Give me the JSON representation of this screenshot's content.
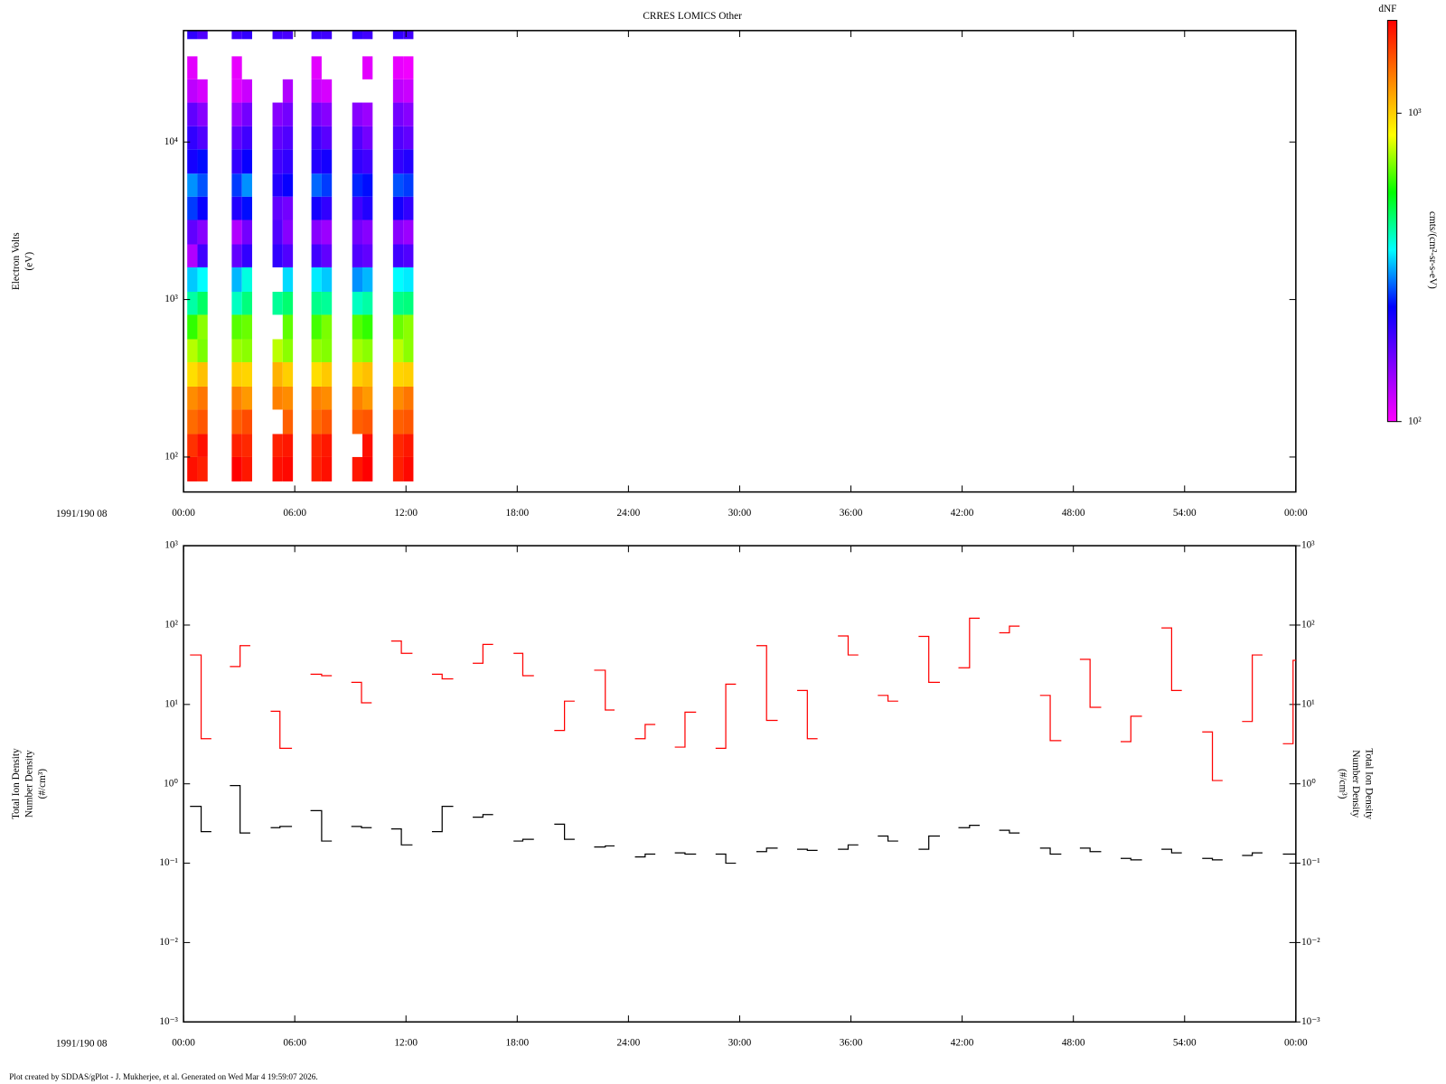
{
  "chart_data": [
    {
      "type": "heatmap",
      "title": "CRRES LOMICS Other",
      "ylabel": [
        "Electron Volts",
        "(eV)"
      ],
      "date_label": "1991/190 08",
      "log_y": true,
      "xlim": [
        0,
        60
      ],
      "xticks": [
        {
          "value": 0,
          "label": "00:00"
        },
        {
          "value": 6,
          "label": "06:00"
        },
        {
          "value": 12,
          "label": "12:00"
        },
        {
          "value": 18,
          "label": "18:00"
        },
        {
          "value": 24,
          "label": "24:00"
        },
        {
          "value": 30,
          "label": "30:00"
        },
        {
          "value": 36,
          "label": "36:00"
        },
        {
          "value": 42,
          "label": "42:00"
        },
        {
          "value": 48,
          "label": "48:00"
        },
        {
          "value": 54,
          "label": "54:00"
        },
        {
          "value": 60,
          "label": "00:00"
        }
      ],
      "ylim": [
        60,
        51000
      ],
      "yticks": [
        {
          "value": 100,
          "label": "10²"
        },
        {
          "value": 1000,
          "label": "10³"
        },
        {
          "value": 10000,
          "label": "10⁴"
        }
      ],
      "xbins": [
        0.2,
        0.75,
        1.3,
        2.6,
        3.15,
        3.7,
        4.8,
        5.35,
        5.9,
        6.9,
        7.45,
        8.0,
        9.1,
        9.65,
        10.2,
        11.3,
        11.85,
        12.4
      ],
      "ybins": [
        70,
        100,
        140,
        200,
        280,
        400,
        560,
        800,
        1120,
        1600,
        2240,
        3200,
        4500,
        6300,
        9000,
        12600,
        17800,
        25000,
        35000,
        45000,
        51000
      ],
      "z": [
        [
          1900,
          1700,
          1400,
          1250,
          950,
          750,
          600,
          420,
          330,
          130,
          170,
          260,
          300,
          220,
          200,
          170,
          125,
          110,
          null,
          200
        ],
        [
          1800,
          1900,
          1500,
          1350,
          1050,
          680,
          700,
          470,
          360,
          190,
          150,
          230,
          270,
          240,
          180,
          150,
          115,
          null,
          null,
          180
        ],
        [
          null,
          null,
          null,
          null,
          null,
          null,
          null,
          null,
          null,
          null,
          null,
          null,
          null,
          null,
          null,
          null,
          null,
          null,
          null,
          null
        ],
        [
          2000,
          1800,
          1450,
          1300,
          1000,
          720,
          640,
          400,
          320,
          170,
          130,
          210,
          260,
          200,
          170,
          140,
          110,
          108,
          null,
          190
        ],
        [
          1850,
          1750,
          1550,
          1200,
          980,
          700,
          660,
          450,
          380,
          200,
          160,
          240,
          300,
          230,
          190,
          160,
          120,
          null,
          null,
          200
        ],
        [
          null,
          null,
          null,
          null,
          null,
          null,
          null,
          null,
          null,
          null,
          null,
          null,
          null,
          null,
          null,
          null,
          null,
          null,
          null,
          null
        ],
        [
          1900,
          1800,
          null,
          1300,
          1100,
          760,
          null,
          430,
          null,
          200,
          180,
          170,
          210,
          190,
          170,
          150,
          null,
          null,
          null,
          190
        ],
        [
          1950,
          1850,
          1450,
          1250,
          1000,
          700,
          650,
          460,
          340,
          180,
          150,
          160,
          230,
          200,
          180,
          160,
          130,
          null,
          null,
          185
        ],
        [
          null,
          null,
          null,
          null,
          null,
          null,
          null,
          null,
          null,
          null,
          null,
          null,
          null,
          null,
          null,
          null,
          null,
          null,
          null,
          null
        ],
        [
          1800,
          1750,
          1400,
          1300,
          950,
          710,
          620,
          440,
          350,
          190,
          150,
          220,
          280,
          210,
          190,
          160,
          120,
          110,
          null,
          195
        ],
        [
          1900,
          1850,
          1500,
          1250,
          1020,
          690,
          680,
          430,
          330,
          170,
          140,
          200,
          260,
          220,
          175,
          150,
          115,
          null,
          null,
          190
        ],
        [
          null,
          null,
          null,
          null,
          null,
          null,
          null,
          null,
          null,
          null,
          null,
          null,
          null,
          null,
          null,
          null,
          null,
          null,
          null,
          null
        ],
        [
          1850,
          null,
          1450,
          1300,
          1000,
          730,
          640,
          400,
          300,
          180,
          160,
          190,
          250,
          200,
          180,
          150,
          null,
          null,
          null,
          200
        ],
        [
          2000,
          1900,
          1500,
          1200,
          1050,
          700,
          600,
          420,
          320,
          170,
          150,
          210,
          240,
          190,
          160,
          140,
          null,
          110,
          null,
          190
        ],
        [
          null,
          null,
          null,
          null,
          null,
          null,
          null,
          null,
          null,
          null,
          null,
          null,
          null,
          null,
          null,
          null,
          null,
          null,
          null,
          null
        ],
        [
          1800,
          1750,
          1450,
          1250,
          980,
          760,
          660,
          440,
          360,
          190,
          150,
          220,
          270,
          200,
          180,
          160,
          125,
          108,
          null,
          200
        ],
        [
          1950,
          1850,
          1500,
          1350,
          1000,
          700,
          700,
          450,
          350,
          180,
          140,
          200,
          260,
          210,
          170,
          150,
          120,
          105,
          null,
          190
        ]
      ],
      "colorbar": {
        "title": "dNF",
        "label": "cmts/(cm²-sr-s-eV)",
        "zlim": [
          100,
          2000
        ],
        "zticks": [
          {
            "value": 100,
            "label": "10²"
          },
          {
            "value": 1000,
            "label": "10³"
          }
        ],
        "colorscale": [
          "#ff00ff",
          "#8000ff",
          "#0000ff",
          "#00ffff",
          "#00ff00",
          "#ffff00",
          "#ff8000",
          "#ff0000"
        ]
      }
    },
    {
      "type": "line",
      "step": true,
      "log_y": true,
      "ylabel": [
        "Total Ion Density",
        "Number Density",
        "(#/cm³)"
      ],
      "y2label": [
        "Total Ion Density",
        "Number Density",
        "(#/cm³)"
      ],
      "date_label": "1991/190 08",
      "xlim": [
        0,
        60
      ],
      "xticks": [
        {
          "value": 0,
          "label": "00:00"
        },
        {
          "value": 6,
          "label": "06:00"
        },
        {
          "value": 12,
          "label": "12:00"
        },
        {
          "value": 18,
          "label": "18:00"
        },
        {
          "value": 24,
          "label": "24:00"
        },
        {
          "value": 30,
          "label": "30:00"
        },
        {
          "value": 36,
          "label": "36:00"
        },
        {
          "value": 42,
          "label": "42:00"
        },
        {
          "value": 48,
          "label": "48:00"
        },
        {
          "value": 54,
          "label": "54:00"
        },
        {
          "value": 60,
          "label": "00:00"
        }
      ],
      "ylim": [
        0.001,
        1000
      ],
      "yticks": [
        {
          "value": 0.001,
          "label": "10⁻³"
        },
        {
          "value": 0.01,
          "label": "10⁻²"
        },
        {
          "value": 0.1,
          "label": "10⁻¹"
        },
        {
          "value": 1,
          "label": "10⁰"
        },
        {
          "value": 10,
          "label": "10¹"
        },
        {
          "value": 100,
          "label": "10²"
        },
        {
          "value": 1000,
          "label": "10³"
        }
      ],
      "y2lim": [
        0.001,
        1000
      ],
      "y2ticks": [
        {
          "value": 0.001,
          "label": "10⁻³"
        },
        {
          "value": 0.01,
          "label": "10⁻²"
        },
        {
          "value": 0.1,
          "label": "10⁻¹"
        },
        {
          "value": 1,
          "label": "10⁰"
        },
        {
          "value": 10,
          "label": "10¹"
        },
        {
          "value": 100,
          "label": "10²"
        },
        {
          "value": 1000,
          "label": "10³"
        }
      ],
      "x": [
        0.35,
        0.95,
        1.5,
        2.5,
        3.05,
        3.6,
        4.7,
        5.2,
        5.85,
        6.85,
        7.45,
        8.0,
        9.05,
        9.6,
        10.15,
        11.2,
        11.75,
        12.35,
        13.4,
        13.95,
        14.55,
        15.6,
        16.15,
        16.7,
        17.8,
        18.3,
        18.9,
        20.0,
        20.55,
        21.1,
        22.15,
        22.75,
        23.25,
        24.35,
        24.9,
        25.45,
        26.5,
        27.05,
        27.65,
        28.7,
        29.25,
        29.8,
        30.9,
        31.45,
        32.05,
        33.1,
        33.65,
        34.2,
        35.3,
        35.85,
        36.4,
        37.45,
        38.0,
        38.55,
        39.65,
        40.2,
        40.8,
        41.8,
        42.4,
        42.95,
        44.0,
        44.55,
        45.1,
        46.2,
        46.75,
        47.35,
        48.35,
        48.9,
        49.5,
        50.55,
        51.1,
        51.7,
        52.75,
        53.3,
        53.85,
        54.95,
        55.5,
        56.05,
        57.1,
        57.65,
        58.2,
        59.3,
        59.85,
        60
      ],
      "series": [
        {
          "color": "#ff0000",
          "values": [
            42,
            3.7,
            null,
            30,
            55,
            null,
            8.2,
            2.8,
            null,
            24,
            23,
            null,
            19,
            10.5,
            null,
            63,
            44,
            null,
            24,
            21,
            null,
            33,
            57,
            null,
            44,
            23,
            null,
            4.7,
            11,
            null,
            27,
            8.5,
            null,
            3.7,
            5.6,
            null,
            2.9,
            8,
            null,
            2.8,
            18,
            null,
            55,
            6.3,
            null,
            15,
            3.7,
            null,
            73,
            42,
            null,
            13,
            11,
            null,
            72,
            19,
            null,
            29,
            122,
            null,
            80,
            97,
            null,
            13,
            3.5,
            null,
            37,
            9.2,
            null,
            3.4,
            7.1,
            null,
            92,
            15,
            null,
            4.5,
            1.1,
            null,
            6.1,
            42,
            null,
            3.2,
            36,
            null
          ]
        },
        {
          "color": "#000000",
          "values": [
            0.52,
            0.25,
            null,
            0.95,
            0.24,
            null,
            0.28,
            0.29,
            null,
            0.46,
            0.19,
            null,
            0.29,
            0.28,
            null,
            0.27,
            0.17,
            null,
            0.25,
            0.52,
            null,
            0.38,
            0.41,
            null,
            0.19,
            0.2,
            null,
            0.31,
            0.2,
            null,
            0.16,
            0.165,
            null,
            0.12,
            0.13,
            null,
            0.135,
            0.13,
            null,
            0.13,
            0.1,
            null,
            0.14,
            0.155,
            null,
            0.15,
            0.145,
            null,
            0.15,
            0.17,
            null,
            0.22,
            0.19,
            null,
            0.15,
            0.22,
            null,
            0.28,
            0.3,
            null,
            0.26,
            0.24,
            null,
            0.155,
            0.13,
            null,
            0.155,
            0.14,
            null,
            0.115,
            0.11,
            null,
            0.15,
            0.135,
            null,
            0.115,
            0.11,
            null,
            0.125,
            0.135,
            null,
            0.13,
            0.13,
            null
          ]
        }
      ]
    }
  ],
  "footer": "Plot created by SDDAS/gPlot - J. Mukherjee, et al.  Generated on Wed Mar 4 19:59:07 2026."
}
